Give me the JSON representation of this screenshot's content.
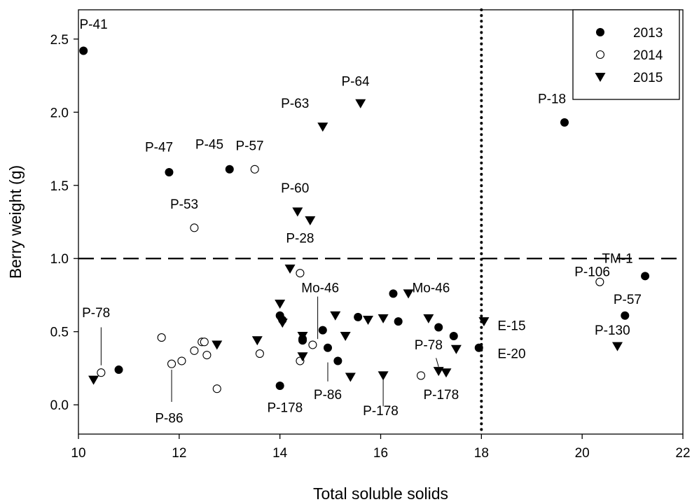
{
  "chart_data": {
    "type": "scatter",
    "xlabel": "Total soluble solids",
    "ylabel": "Berry weight (g)",
    "xlim": [
      10,
      22
    ],
    "ylim": [
      -0.2,
      2.7
    ],
    "xticks": [
      10,
      12,
      14,
      16,
      18,
      20,
      22
    ],
    "yticks": [
      0.0,
      0.5,
      1.0,
      1.5,
      2.0,
      2.5
    ],
    "xtick_labels": [
      "10",
      "12",
      "14",
      "16",
      "18",
      "20",
      "22"
    ],
    "ytick_labels": [
      "0.0",
      "0.5",
      "1.0",
      "1.5",
      "2.0",
      "2.5"
    ],
    "legend_position": "top-right",
    "reference_lines": [
      {
        "orientation": "horizontal",
        "value": 1.0,
        "style": "dashed"
      },
      {
        "orientation": "vertical",
        "value": 18,
        "style": "dotted"
      }
    ],
    "series": [
      {
        "name": "2013",
        "marker": "filled-circle",
        "points": [
          [
            10.1,
            2.42
          ],
          [
            10.8,
            0.24
          ],
          [
            11.8,
            1.59
          ],
          [
            13.0,
            1.61
          ],
          [
            14.0,
            0.61
          ],
          [
            14.0,
            0.13
          ],
          [
            14.05,
            0.58
          ],
          [
            14.45,
            0.44
          ],
          [
            14.45,
            0.45
          ],
          [
            14.85,
            0.51
          ],
          [
            14.95,
            0.39
          ],
          [
            15.15,
            0.3
          ],
          [
            15.55,
            0.6
          ],
          [
            16.25,
            0.76
          ],
          [
            16.35,
            0.57
          ],
          [
            17.15,
            0.53
          ],
          [
            17.45,
            0.47
          ],
          [
            17.95,
            0.39
          ],
          [
            19.65,
            1.93
          ],
          [
            20.85,
            0.61
          ],
          [
            21.25,
            0.88
          ]
        ]
      },
      {
        "name": "2014",
        "marker": "open-circle",
        "points": [
          [
            10.45,
            0.22
          ],
          [
            11.65,
            0.46
          ],
          [
            11.85,
            0.28
          ],
          [
            12.05,
            0.3
          ],
          [
            12.3,
            0.37
          ],
          [
            12.3,
            1.21
          ],
          [
            12.45,
            0.43
          ],
          [
            12.5,
            0.43
          ],
          [
            12.55,
            0.34
          ],
          [
            12.75,
            0.11
          ],
          [
            13.5,
            1.61
          ],
          [
            13.6,
            0.35
          ],
          [
            14.4,
            0.3
          ],
          [
            14.4,
            0.9
          ],
          [
            14.65,
            0.41
          ],
          [
            16.8,
            0.2
          ],
          [
            20.35,
            0.84
          ]
        ]
      },
      {
        "name": "2015",
        "marker": "filled-triangle-down",
        "points": [
          [
            10.3,
            0.17
          ],
          [
            12.75,
            0.41
          ],
          [
            13.55,
            0.44
          ],
          [
            14.0,
            0.69
          ],
          [
            14.05,
            0.56
          ],
          [
            14.2,
            0.93
          ],
          [
            14.35,
            1.32
          ],
          [
            14.45,
            0.47
          ],
          [
            14.45,
            0.33
          ],
          [
            14.6,
            1.26
          ],
          [
            14.85,
            1.9
          ],
          [
            15.1,
            0.61
          ],
          [
            15.3,
            0.47
          ],
          [
            15.4,
            0.19
          ],
          [
            15.6,
            2.06
          ],
          [
            15.75,
            0.58
          ],
          [
            16.05,
            0.2
          ],
          [
            16.05,
            0.59
          ],
          [
            16.55,
            0.76
          ],
          [
            16.95,
            0.59
          ],
          [
            17.15,
            0.23
          ],
          [
            17.3,
            0.22
          ],
          [
            17.5,
            0.38
          ],
          [
            18.05,
            0.57
          ],
          [
            20.7,
            0.4
          ]
        ]
      }
    ],
    "annotations": [
      {
        "text": "P-41",
        "x": 10.3,
        "y": 2.57
      },
      {
        "text": "P-47",
        "x": 11.6,
        "y": 1.73
      },
      {
        "text": "P-45",
        "x": 12.6,
        "y": 1.75
      },
      {
        "text": "P-57",
        "x": 13.4,
        "y": 1.74
      },
      {
        "text": "P-53",
        "x": 12.1,
        "y": 1.34
      },
      {
        "text": "P-60",
        "x": 14.3,
        "y": 1.45
      },
      {
        "text": "P-28",
        "x": 14.4,
        "y": 1.11
      },
      {
        "text": "P-63",
        "x": 14.3,
        "y": 2.03
      },
      {
        "text": "P-64",
        "x": 15.5,
        "y": 2.18
      },
      {
        "text": "P-18",
        "x": 19.4,
        "y": 2.06
      },
      {
        "text": "TM-1",
        "x": 20.7,
        "y": 0.97
      },
      {
        "text": "P-106",
        "x": 20.2,
        "y": 0.88
      },
      {
        "text": "P-57",
        "x": 20.9,
        "y": 0.69
      },
      {
        "text": "P-130",
        "x": 20.6,
        "y": 0.48
      },
      {
        "text": "Mo-46",
        "x": 14.8,
        "y": 0.77
      },
      {
        "text": "Mo-46",
        "x": 17.0,
        "y": 0.77
      },
      {
        "text": "E-15",
        "x": 18.6,
        "y": 0.51
      },
      {
        "text": "E-20",
        "x": 18.6,
        "y": 0.32
      },
      {
        "text": "P-78",
        "x": 10.35,
        "y": 0.6
      },
      {
        "text": "P-78",
        "x": 16.95,
        "y": 0.38
      },
      {
        "text": "P-86",
        "x": 11.8,
        "y": -0.12
      },
      {
        "text": "P-86",
        "x": 14.95,
        "y": 0.04
      },
      {
        "text": "P-178",
        "x": 14.1,
        "y": -0.05
      },
      {
        "text": "P-178",
        "x": 16.0,
        "y": -0.07
      },
      {
        "text": "P-178",
        "x": 17.2,
        "y": 0.04
      }
    ],
    "leader_lines": [
      [
        10.45,
        0.53,
        10.45,
        0.27
      ],
      [
        11.85,
        0.24,
        11.85,
        0.02
      ],
      [
        14.75,
        0.74,
        14.75,
        0.45
      ],
      [
        14.95,
        0.29,
        14.95,
        0.16
      ],
      [
        16.05,
        0.18,
        16.05,
        -0.01
      ],
      [
        17.1,
        0.32,
        17.15,
        0.26
      ]
    ]
  }
}
